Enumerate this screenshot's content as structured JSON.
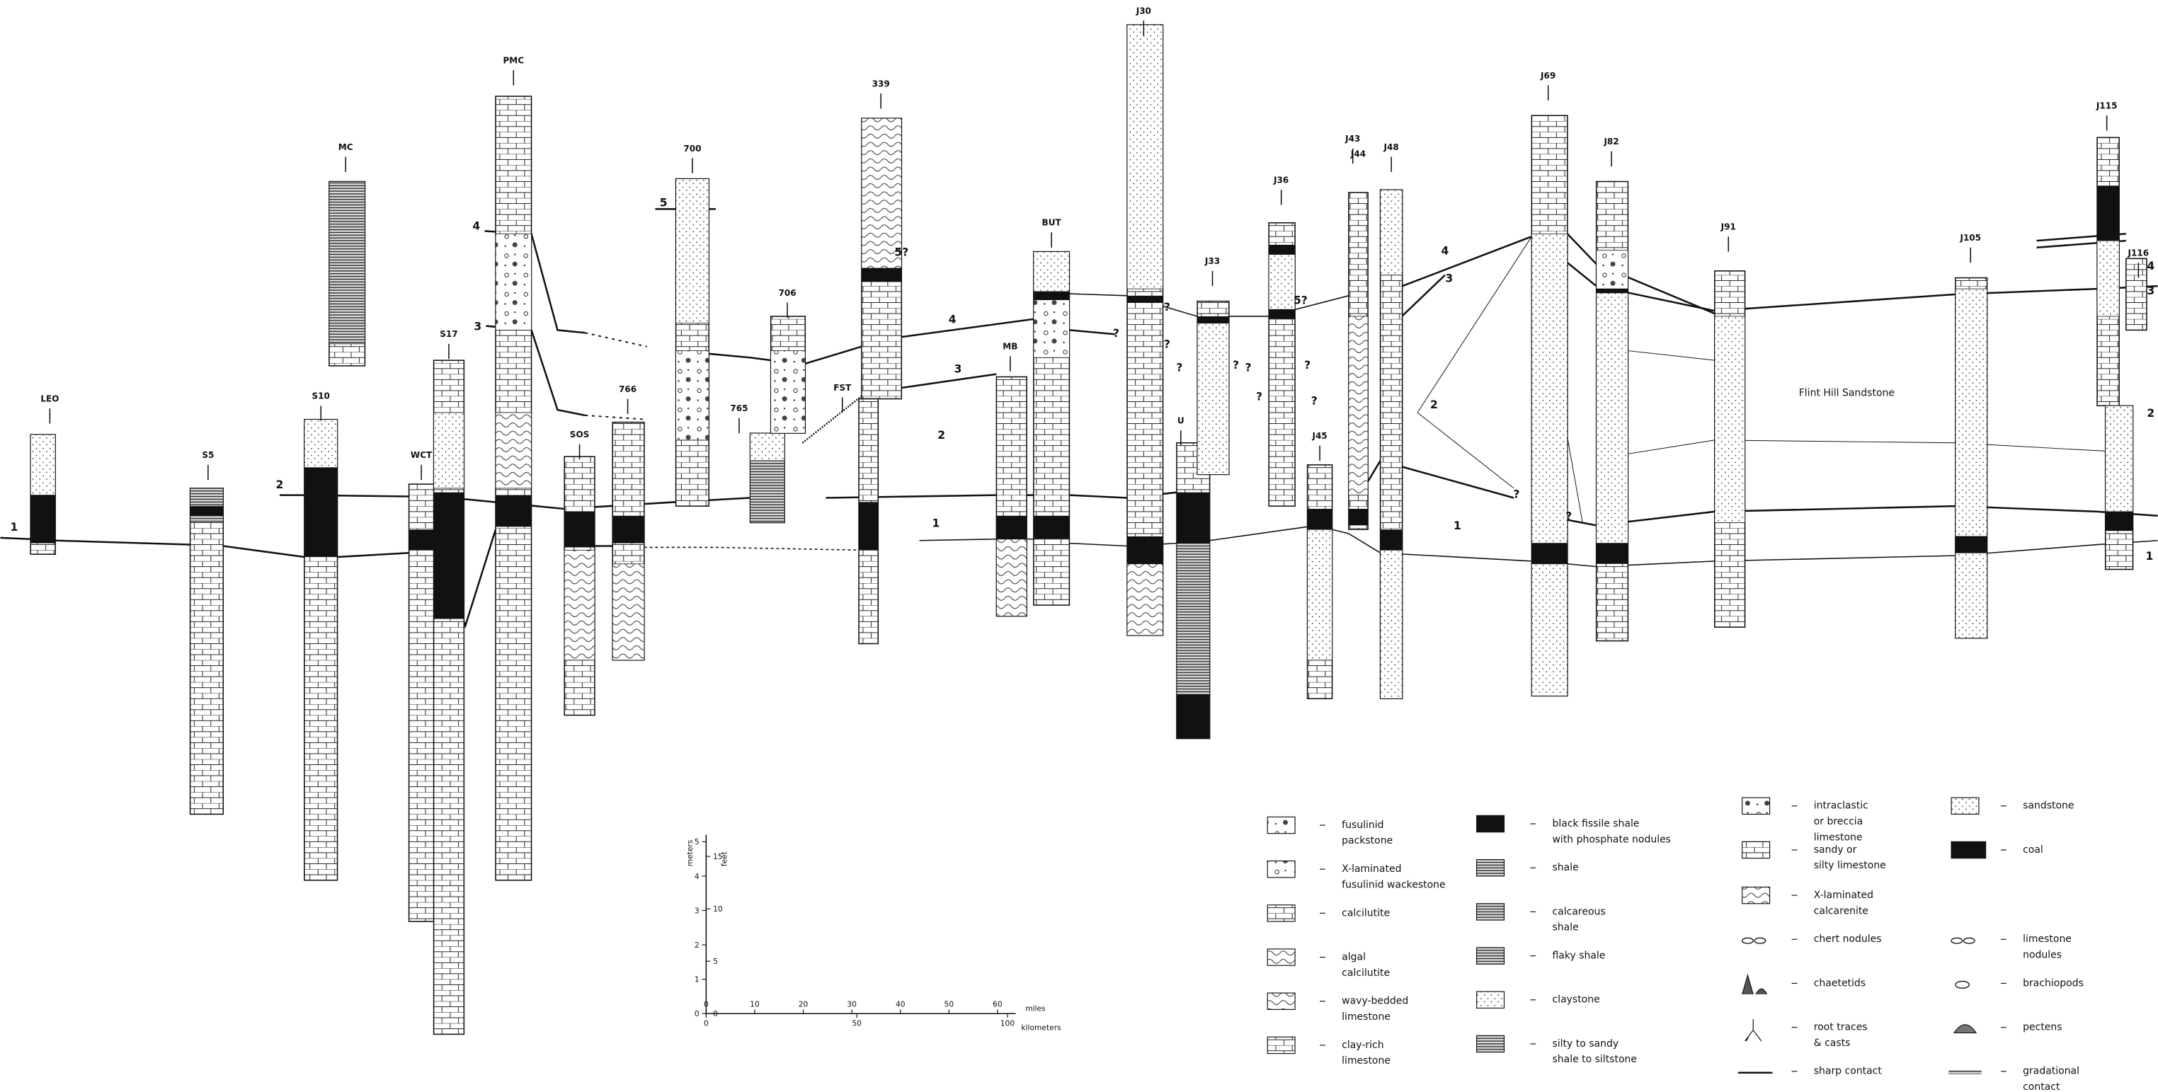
{
  "columns": [
    {
      "label": "LEO"
    },
    {
      "label": "S5"
    },
    {
      "label": "S10"
    },
    {
      "label": "WCT"
    },
    {
      "label": "S17"
    },
    {
      "label": "PMC"
    },
    {
      "label": "MC"
    },
    {
      "label": "SOS"
    },
    {
      "label": "766"
    },
    {
      "label": "765"
    },
    {
      "label": "700"
    },
    {
      "label": "706"
    },
    {
      "label": "339"
    },
    {
      "label": "FST"
    },
    {
      "label": "MB"
    },
    {
      "label": "BUT"
    },
    {
      "label": "J30"
    },
    {
      "label": "U"
    },
    {
      "label": "J33"
    },
    {
      "label": "J36"
    },
    {
      "label": "J45"
    },
    {
      "label": "J43"
    },
    {
      "label": "J44"
    },
    {
      "label": "J48"
    },
    {
      "label": "J69"
    },
    {
      "label": "J82"
    },
    {
      "label": "J91"
    },
    {
      "label": "J105"
    },
    {
      "label": "J115"
    },
    {
      "label": "J116"
    }
  ],
  "unit_labels": [
    "1",
    "2",
    "3",
    "4",
    "5",
    "5?",
    "4",
    "3",
    "2",
    "1",
    "5?",
    "4",
    "3",
    "2",
    "1",
    "4",
    "3",
    "2",
    "1"
  ],
  "query_marks": [
    "?",
    "?",
    "?",
    "?",
    "?",
    "?",
    "?",
    "?",
    "?",
    "?",
    "?"
  ],
  "annotations": {
    "flint_hill": "Flint Hill Sandstone"
  },
  "legend": [
    {
      "label": [
        "fusulinid",
        "packstone"
      ]
    },
    {
      "label": [
        "X-laminated",
        "fusulinid wackestone"
      ]
    },
    {
      "label": [
        "calcilutite"
      ]
    },
    {
      "label": [
        "algal",
        "calcilutite"
      ]
    },
    {
      "label": [
        "wavy-bedded",
        "limestone"
      ]
    },
    {
      "label": [
        "clay-rich",
        "limestone"
      ]
    },
    {
      "label": [
        "black fissile shale",
        "with phosphate nodules"
      ]
    },
    {
      "label": [
        "shale"
      ]
    },
    {
      "label": [
        "calcareous",
        "shale"
      ]
    },
    {
      "label": [
        "flaky shale"
      ]
    },
    {
      "label": [
        "claystone"
      ]
    },
    {
      "label": [
        "silty to sandy",
        "shale to siltstone"
      ]
    },
    {
      "label": [
        "intraclastic",
        "or breccia",
        "limestone"
      ]
    },
    {
      "label": [
        "sandy or",
        "silty limestone"
      ]
    },
    {
      "label": [
        "X-laminated",
        "calcarenite"
      ]
    },
    {
      "label": [
        "chert nodules"
      ]
    },
    {
      "label": [
        "chaetetids"
      ]
    },
    {
      "label": [
        "root traces",
        "& casts"
      ]
    },
    {
      "label": [
        "sharp contact"
      ]
    },
    {
      "label": [
        "sandstone"
      ]
    },
    {
      "label": [
        "coal"
      ]
    },
    {
      "label": [
        "limestone",
        "nodules"
      ]
    },
    {
      "label": [
        "brachiopods"
      ]
    },
    {
      "label": [
        "pectens"
      ]
    },
    {
      "label": [
        "gradational",
        "contact"
      ]
    }
  ],
  "scale": {
    "meters_label": "meters",
    "feet_label": "feet",
    "meter_ticks": [
      0,
      1,
      2,
      3,
      4,
      5
    ],
    "feet_ticks": [
      0,
      5,
      10,
      15
    ],
    "mile_ticks": [
      0,
      10,
      20,
      30,
      40,
      50,
      60
    ],
    "km_ticks": [
      0,
      50,
      100
    ],
    "miles_label": "miles",
    "km_label": "kilometers"
  }
}
